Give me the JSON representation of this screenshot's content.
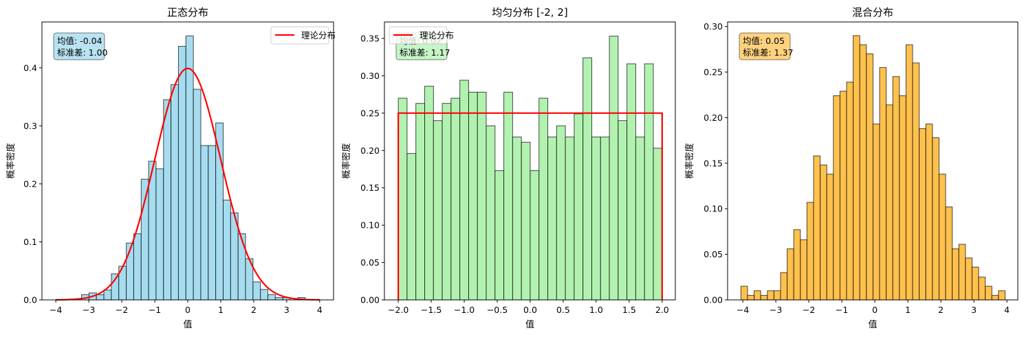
{
  "chart_data": [
    {
      "type": "bar",
      "subtype": "histogram",
      "title": "正态分布",
      "xlabel": "值",
      "ylabel": "概率密度",
      "xlim": [
        -4.42,
        4.42
      ],
      "ylim": [
        0,
        0.479
      ],
      "xticks": [
        -4,
        -3,
        -2,
        -1,
        0,
        1,
        2,
        3,
        4
      ],
      "yticks": [
        0.0,
        0.1,
        0.2,
        0.3,
        0.4
      ],
      "ytick_decimals": 1,
      "grid": false,
      "bin_start": -3.22,
      "bin_width": 0.226,
      "values": [
        0.009,
        0.012,
        0.009,
        0.017,
        0.045,
        0.058,
        0.098,
        0.114,
        0.208,
        0.239,
        0.226,
        0.345,
        0.371,
        0.437,
        0.455,
        0.363,
        0.266,
        0.266,
        0.305,
        0.172,
        0.15,
        0.114,
        0.071,
        0.031,
        0.018,
        0.009,
        0.004,
        0.004,
        0.0,
        0.004
      ],
      "bar_color": "#a6dcef",
      "stats_box": {
        "mean_label": "均值: -0.04",
        "std_label": "标准差: 1.00",
        "color": "#b9e3f2"
      },
      "legend": {
        "label": "理论分布",
        "placement": "top-right"
      },
      "theory_curve": {
        "kind": "normal",
        "mean": 0,
        "std": 1,
        "x_range": [
          -4,
          4
        ],
        "color": "#ff0000"
      }
    },
    {
      "type": "bar",
      "subtype": "histogram",
      "title": "均匀分布 [-2, 2]",
      "xlabel": "值",
      "ylabel": "概率密度",
      "xlim": [
        -2.21,
        2.2
      ],
      "ylim": [
        0,
        0.372
      ],
      "xticks": [
        -2.0,
        -1.5,
        -1.0,
        -0.5,
        0.0,
        0.5,
        1.0,
        1.5,
        2.0
      ],
      "xtick_decimals": 1,
      "yticks": [
        0.0,
        0.05,
        0.1,
        0.15,
        0.2,
        0.25,
        0.3,
        0.35
      ],
      "ytick_decimals": 2,
      "grid": false,
      "bin_start": -2.0,
      "bin_width": 0.13333,
      "values": [
        0.27,
        0.196,
        0.263,
        0.286,
        0.24,
        0.263,
        0.27,
        0.294,
        0.278,
        0.278,
        0.233,
        0.173,
        0.278,
        0.218,
        0.211,
        0.173,
        0.27,
        0.218,
        0.233,
        0.218,
        0.249,
        0.324,
        0.218,
        0.218,
        0.353,
        0.24,
        0.316,
        0.218,
        0.316,
        0.203
      ],
      "bar_color": "#b2f2b0",
      "stats_box": {
        "mean_label": "均值: 0.02",
        "std_label": "标准差: 1.17",
        "color": "#c6f5c6"
      },
      "legend": {
        "label": "理论分布",
        "placement": "top-left"
      },
      "theory_curve": {
        "kind": "uniform",
        "density": 0.25,
        "x_range": [
          -2,
          2
        ],
        "color": "#ff0000"
      }
    },
    {
      "type": "bar",
      "subtype": "histogram",
      "title": "混合分布",
      "xlabel": "值",
      "ylabel": "概率密度",
      "xlim": [
        -4.46,
        4.33
      ],
      "ylim": [
        0,
        0.305
      ],
      "xticks": [
        -4,
        -3,
        -2,
        -1,
        0,
        1,
        2,
        3,
        4
      ],
      "yticks": [
        0.0,
        0.05,
        0.1,
        0.15,
        0.2,
        0.25,
        0.3
      ],
      "ytick_decimals": 2,
      "grid": false,
      "bin_start": -4.056,
      "bin_width": 0.2,
      "values": [
        0.015,
        0.005,
        0.01,
        0.005,
        0.01,
        0.01,
        0.03,
        0.056,
        0.077,
        0.066,
        0.107,
        0.158,
        0.148,
        0.138,
        0.224,
        0.229,
        0.239,
        0.29,
        0.28,
        0.27,
        0.193,
        0.255,
        0.214,
        0.245,
        0.224,
        0.28,
        0.26,
        0.188,
        0.193,
        0.178,
        0.138,
        0.102,
        0.056,
        0.061,
        0.046,
        0.036,
        0.025,
        0.015,
        0.005,
        0.01
      ],
      "bar_color": "#ffc14d",
      "stats_box": {
        "mean_label": "均值: 0.05",
        "std_label": "标准差: 1.37",
        "color": "#ffd280"
      }
    }
  ]
}
